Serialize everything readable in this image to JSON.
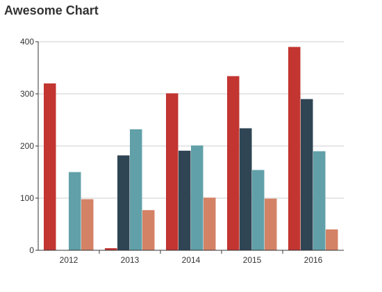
{
  "chart_data": {
    "type": "bar",
    "title": "Awesome Chart",
    "xlabel": "",
    "ylabel": "",
    "categories": [
      "2012",
      "2013",
      "2014",
      "2015",
      "2016"
    ],
    "yticks": [
      0,
      100,
      200,
      300,
      400
    ],
    "ylim": [
      0,
      400
    ],
    "grid": true,
    "legend": "none",
    "series": [
      {
        "color": "#c23531",
        "values": [
          320,
          4,
          301,
          334,
          390
        ]
      },
      {
        "color": "#2f4554",
        "values": [
          0,
          182,
          191,
          234,
          290
        ]
      },
      {
        "color": "#61a0a8",
        "values": [
          150,
          232,
          201,
          154,
          190
        ]
      },
      {
        "color": "#d48265",
        "values": [
          98,
          77,
          101,
          99,
          40
        ]
      }
    ]
  }
}
